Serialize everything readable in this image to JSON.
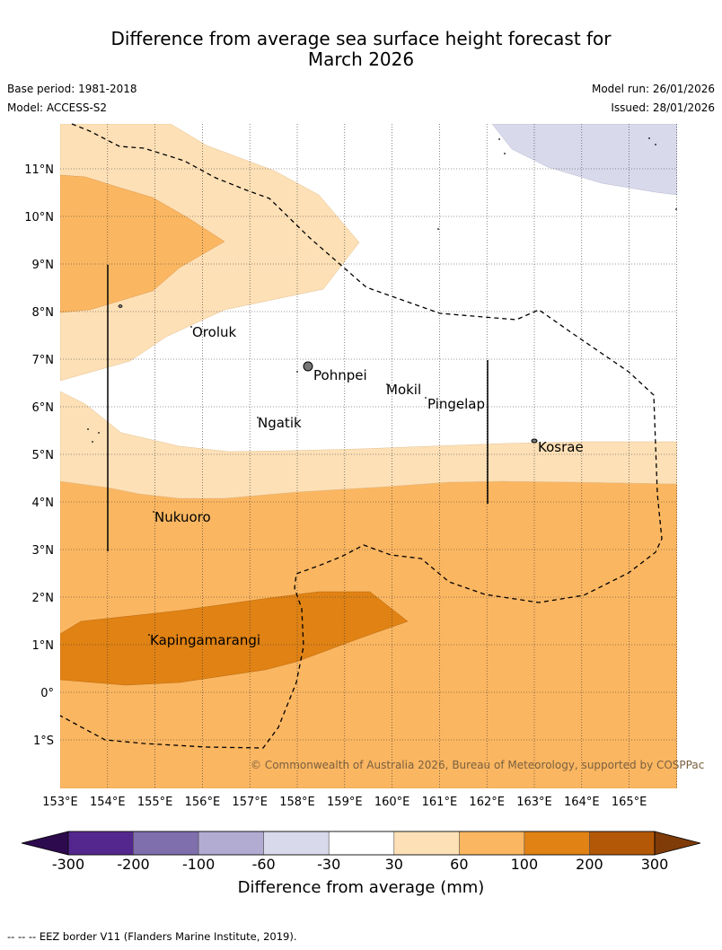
{
  "title_line1": "Difference from average sea surface height forecast for",
  "title_line2": "March 2026",
  "meta": {
    "base_period": "Base period: 1981-2018",
    "model": "Model: ACCESS-S2",
    "model_run": "Model run: 26/01/2026",
    "issued": "Issued: 28/01/2026"
  },
  "map": {
    "lat_labels": [
      "11°N",
      "10°N",
      "9°N",
      "8°N",
      "7°N",
      "6°N",
      "5°N",
      "4°N",
      "3°N",
      "2°N",
      "1°N",
      "0°",
      "1°S"
    ],
    "lon_labels": [
      "153°E",
      "154°E",
      "155°E",
      "156°E",
      "157°E",
      "158°E",
      "159°E",
      "160°E",
      "161°E",
      "162°E",
      "163°E",
      "164°E",
      "165°E"
    ],
    "places": [
      "Oroluk",
      "Pohnpei",
      "Mokil",
      "Pingelap",
      "Ngatik",
      "Kosrae",
      "Nukuoro",
      "Kapingamarangi"
    ],
    "credit": "© Commonwealth of Australia 2026, Bureau of Meteorology, supported by COSPPac"
  },
  "legend": {
    "ticks": [
      "-300",
      "-200",
      "-100",
      "-60",
      "-30",
      "30",
      "60",
      "100",
      "200",
      "300"
    ],
    "label": "Difference from average (mm)",
    "colors": {
      "below_min": "#2d0a4e",
      "b1": "#54278f",
      "b2": "#7f6fad",
      "b3": "#b2abd2",
      "b4": "#d8d9eb",
      "b5": "#ffffff",
      "b6": "#fee0b6",
      "b7": "#fbb661",
      "b8": "#e08214",
      "b9": "#b35806",
      "above_max": "#7f3b08"
    }
  },
  "footnote": "--  --  -- EEZ border V11 (Flanders Marine Institute, 2019)."
}
